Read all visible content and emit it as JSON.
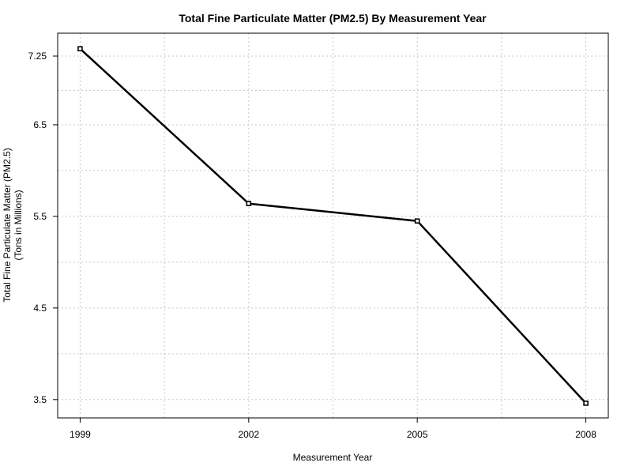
{
  "chart_data": {
    "type": "line",
    "title": "Total Fine Particulate Matter (PM2.5) By Measurement Year",
    "xlabel": "Measurement Year",
    "ylabel_lines": [
      "Total Fine Particulate Matter (PM2.5)",
      "(Tons in Millions)"
    ],
    "x": [
      1999,
      2002,
      2005,
      2008
    ],
    "values": [
      7.33,
      5.64,
      5.45,
      3.46
    ],
    "x_ticks": [
      "1999",
      "2002",
      "2005",
      "2008"
    ],
    "y_ticks": [
      "3.5",
      "4.5",
      "5.5",
      "6.5",
      "7.25"
    ],
    "y_tick_values": [
      3.5,
      4.5,
      5.5,
      6.5,
      7.25
    ],
    "x_minor_grid": [
      2000.5,
      2003.5,
      2006.5
    ],
    "y_minor_grid": [
      4.0,
      5.0,
      6.0,
      6.875
    ],
    "xlim": [
      1998.6,
      2008.4
    ],
    "ylim": [
      3.3,
      7.5
    ],
    "line_color": "#000000",
    "grid": true,
    "legend": "none"
  }
}
